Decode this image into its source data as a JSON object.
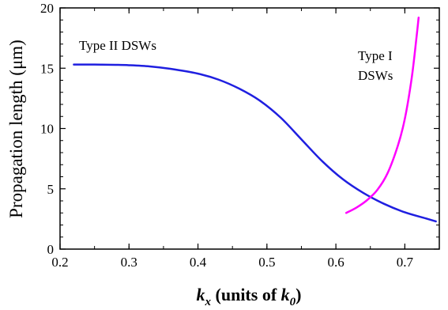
{
  "chart_data": {
    "type": "line",
    "xlabel": {
      "base": "k",
      "sub": "x",
      "rest": " (units of ",
      "base2": "k",
      "sub2": "0",
      "close": ")"
    },
    "ylabel": "Propagation length (μm)",
    "xlim": [
      0.2,
      0.75
    ],
    "ylim": [
      0,
      20
    ],
    "x_ticks": [
      0.2,
      0.3,
      0.4,
      0.5,
      0.6,
      0.7
    ],
    "y_ticks": [
      0,
      5,
      10,
      15,
      20
    ],
    "x_tick_labels": [
      "0.2",
      "0.3",
      "0.4",
      "0.5",
      "0.6",
      "0.7"
    ],
    "y_tick_labels": [
      "0",
      "5",
      "10",
      "15",
      "20"
    ],
    "series": [
      {
        "name": "Type II DSWs",
        "color": "#1f1fe0",
        "points": [
          [
            0.22,
            15.3
          ],
          [
            0.25,
            15.3
          ],
          [
            0.28,
            15.28
          ],
          [
            0.3,
            15.25
          ],
          [
            0.33,
            15.15
          ],
          [
            0.36,
            14.95
          ],
          [
            0.4,
            14.55
          ],
          [
            0.43,
            14.05
          ],
          [
            0.46,
            13.3
          ],
          [
            0.49,
            12.3
          ],
          [
            0.52,
            10.9
          ],
          [
            0.55,
            9.1
          ],
          [
            0.58,
            7.3
          ],
          [
            0.61,
            5.8
          ],
          [
            0.64,
            4.65
          ],
          [
            0.67,
            3.75
          ],
          [
            0.7,
            3.05
          ],
          [
            0.73,
            2.55
          ],
          [
            0.745,
            2.3
          ]
        ]
      },
      {
        "name": "Type I DSWs",
        "color": "#ff00ff",
        "points": [
          [
            0.615,
            3.0
          ],
          [
            0.63,
            3.45
          ],
          [
            0.645,
            4.05
          ],
          [
            0.66,
            4.9
          ],
          [
            0.675,
            6.3
          ],
          [
            0.69,
            8.6
          ],
          [
            0.7,
            10.8
          ],
          [
            0.71,
            14.2
          ],
          [
            0.717,
            17.6
          ],
          [
            0.72,
            19.2
          ]
        ]
      }
    ],
    "annotations": [
      {
        "text": "Type II DSWs"
      },
      {
        "text": "Type I"
      },
      {
        "text": "DSWs"
      }
    ]
  }
}
